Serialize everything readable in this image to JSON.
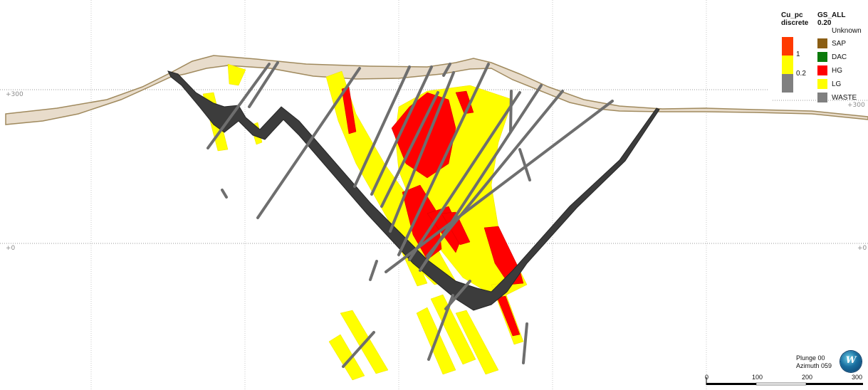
{
  "elevation_labels": {
    "left_300": "+300",
    "left_0": "+0",
    "right_300": "+300",
    "right_0": "+0"
  },
  "legend_cu": {
    "title_line1": "Cu_pc",
    "title_line2": "discrete",
    "thresholds": [
      "1",
      "0.2"
    ],
    "colors": [
      "#ff3a00",
      "#ffff00",
      "#808080"
    ]
  },
  "legend_gs": {
    "title": "GS_ALL 0.20",
    "items": [
      {
        "label": "Unknown",
        "color": null
      },
      {
        "label": "SAP",
        "color": "#8b5e14"
      },
      {
        "label": "DAC",
        "color": "#0a7a0a"
      },
      {
        "label": "HG",
        "color": "#ff0000"
      },
      {
        "label": "LG",
        "color": "#ffff00"
      },
      {
        "label": "WASTE",
        "color": "#808080"
      }
    ]
  },
  "view": {
    "plunge": "Plunge 00",
    "azimuth": "Azimuth 059"
  },
  "scale_bar": {
    "ticks": [
      "0",
      "100",
      "200",
      "300"
    ]
  },
  "colors": {
    "topo_fill": "#e8dccb",
    "topo_line": "#a08a5e",
    "pit": "#3c3c3c",
    "hg": "#ff0000",
    "lg": "#ffff00",
    "waste": "#808080"
  }
}
